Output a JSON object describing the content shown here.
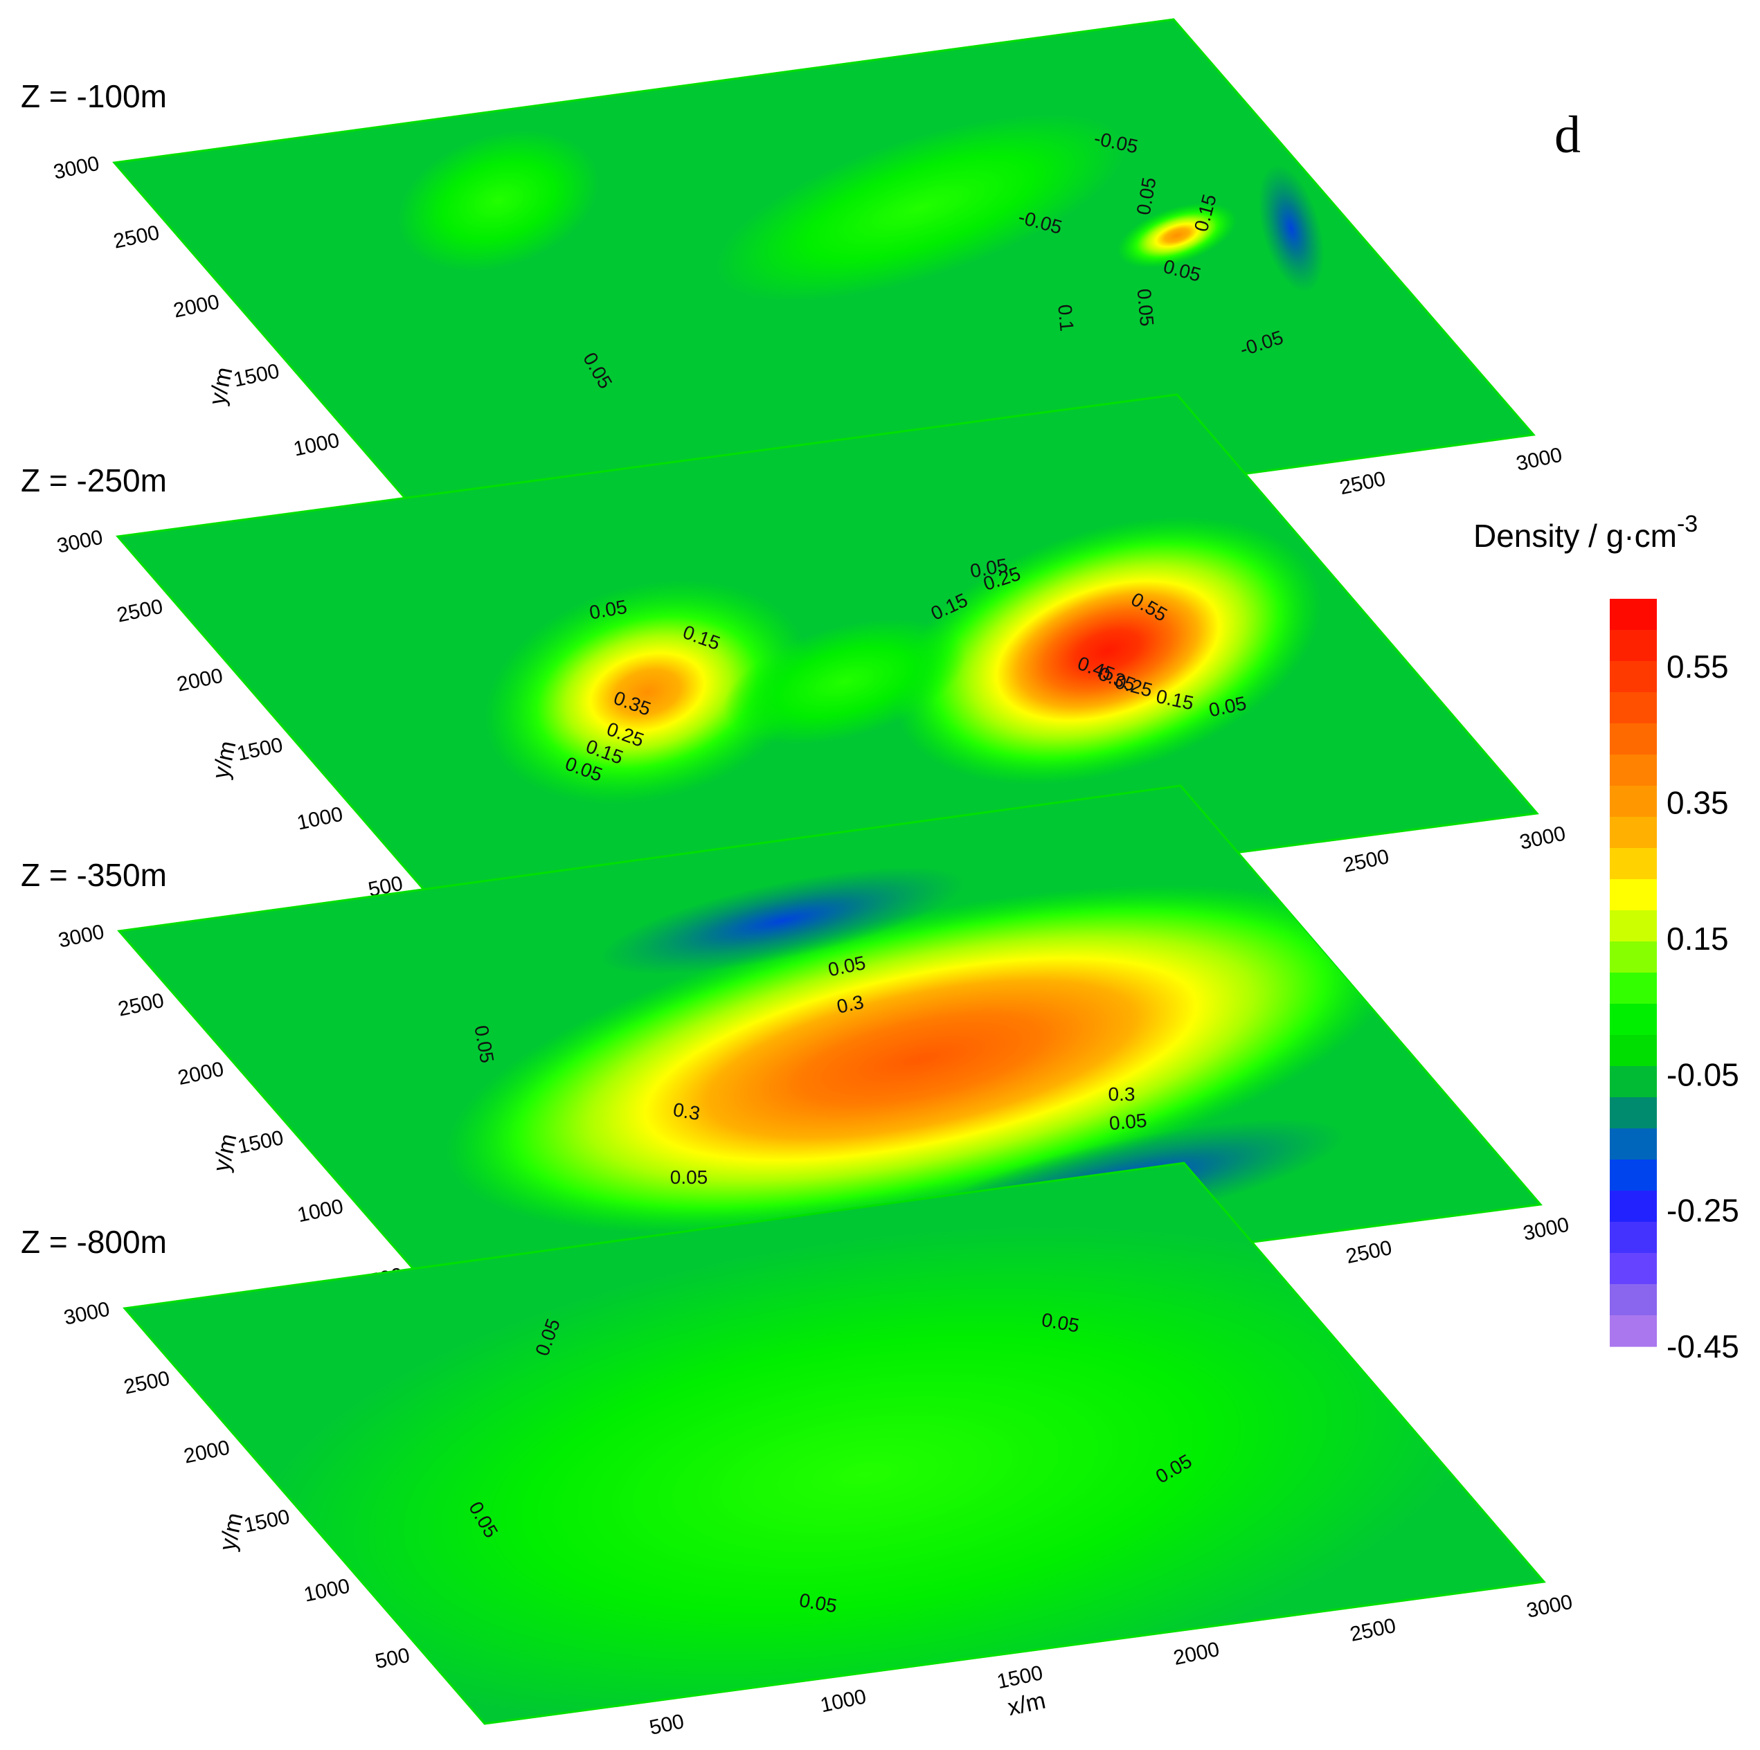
{
  "chart_data": {
    "type": "heatmap",
    "description_units": "density contrast slices of a 3D inversion",
    "panel_label": "d",
    "xlabel": "x/m",
    "ylabel": "y/m",
    "x_range": [
      0,
      3000
    ],
    "y_range": [
      0,
      3000
    ],
    "x_ticks": [
      "500",
      "1000",
      "1500",
      "2000",
      "2500",
      "3000"
    ],
    "y_ticks": [
      "3000",
      "2500",
      "2000",
      "1500",
      "1000",
      "500"
    ],
    "colorbar": {
      "title": "Density / g·cm",
      "title_sup": "-3",
      "ticks": [
        "0.55",
        "0.35",
        "0.15",
        "-0.05",
        "-0.25",
        "-0.45"
      ],
      "range": [
        -0.45,
        0.65
      ],
      "colors": [
        "#ff0a00",
        "#ff2200",
        "#ff3a00",
        "#ff5000",
        "#ff6a00",
        "#ff8200",
        "#ff9800",
        "#ffb000",
        "#ffd200",
        "#ffff00",
        "#ccff00",
        "#88ff00",
        "#33ff00",
        "#00ee00",
        "#00dd00",
        "#00bb33",
        "#008b6e",
        "#0066bb",
        "#0044ee",
        "#2222ff",
        "#4433ff",
        "#6644ff",
        "#8a66ee",
        "#aa77ee"
      ]
    },
    "slices": [
      {
        "title": "Z = -100m",
        "contour_labels": [
          "-0.05",
          "0.05",
          "0.05",
          "0.05",
          "-0.05",
          "-0.05",
          "0.05",
          "0.15",
          "0.1"
        ],
        "anomalies": [
          {
            "x": 1100,
            "y": 1900,
            "value": 0.1
          },
          {
            "x": 2300,
            "y": 2200,
            "value": 0.15
          },
          {
            "x": 2700,
            "y": 2000,
            "value": -0.2
          }
        ]
      },
      {
        "title": "Z = -250m",
        "contour_labels": [
          "0.05",
          "0.15",
          "0.35",
          "0.25",
          "0.15",
          "0.05",
          "0.05",
          "0.15",
          "0.25",
          "0.55",
          "0.45",
          "0.35",
          "0.25",
          "0.15",
          "0.05"
        ],
        "anomalies": [
          {
            "x": 1100,
            "y": 1900,
            "value": 0.4
          },
          {
            "x": 2300,
            "y": 2100,
            "value": 0.6
          }
        ]
      },
      {
        "title": "Z = -350m",
        "contour_labels": [
          "0.05",
          "0.05",
          "0.3",
          "0.3",
          "0.3",
          "0.05",
          "0.05"
        ],
        "anomalies": [
          {
            "x": 1400,
            "y": 1900,
            "value": 0.45
          },
          {
            "x": 2100,
            "y": 2000,
            "value": 0.5
          }
        ]
      },
      {
        "title": "Z = -800m",
        "contour_labels": [
          "0.05",
          "0.05",
          "0.05",
          "0.05",
          "0.05"
        ],
        "anomalies": [
          {
            "x": 1500,
            "y": 1600,
            "value": 0.08
          }
        ]
      }
    ]
  }
}
